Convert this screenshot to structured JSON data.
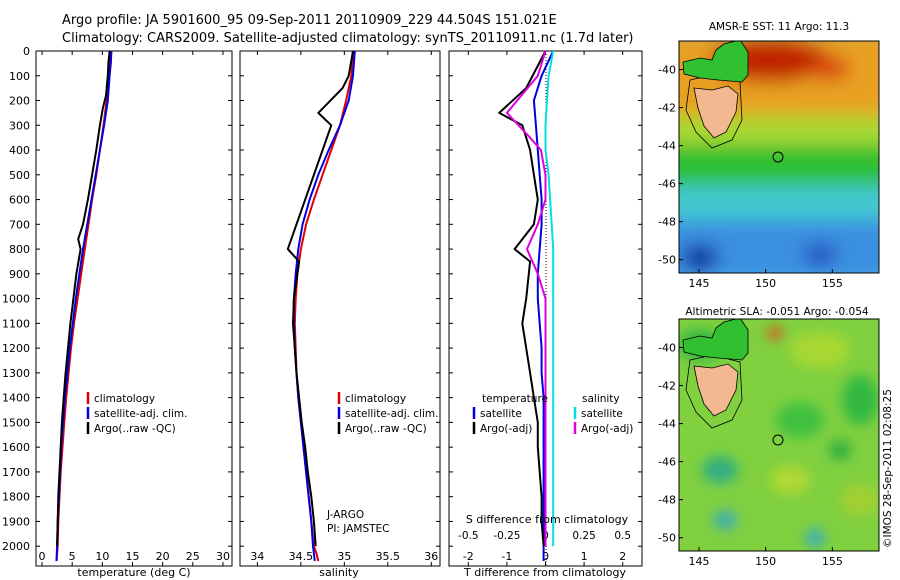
{
  "title": {
    "line1": "Argo profile: JA 5901600_95 09-Sep-2011 20110909_229 44.504S 151.021E",
    "line2": "Climatology: CARS2009. Satellite-adjusted climatology: synTS_20110911.nc (1.7d later)"
  },
  "credit": "©IMOS 28-Sep-2011 02:08:25",
  "colors": {
    "climatology": "#e00000",
    "satellite": "#0000e0",
    "argo": "#000000",
    "sat_salinity": "#00e0e0",
    "argo_salinity_adj": "#e000e0"
  },
  "chart_data": [
    {
      "type": "line",
      "xlabel": "temperature (deg C)",
      "ylim": [
        2080,
        0
      ],
      "xlim": [
        -1,
        31.5
      ],
      "xticks": [
        0,
        5,
        10,
        15,
        20,
        25,
        30
      ],
      "yticks": [
        0,
        100,
        200,
        300,
        400,
        500,
        600,
        700,
        800,
        900,
        1000,
        1100,
        1200,
        1300,
        1400,
        1500,
        1600,
        1700,
        1800,
        1900,
        2000
      ],
      "legend": [
        "climatology",
        "satellite-adj. clim.",
        "Argo(..raw -QC)"
      ],
      "legend_position": "lower-center",
      "series": [
        {
          "name": "climatology",
          "color": "#e00000",
          "x": [
            11.3,
            11.2,
            11.0,
            10.7,
            10.2,
            9.6,
            9.0,
            8.3,
            7.7,
            7.1,
            6.5,
            5.9,
            5.3,
            4.8,
            4.4,
            4.0,
            3.7,
            3.4,
            3.1,
            2.9,
            2.7,
            2.6,
            2.5,
            2.4
          ],
          "depth": [
            0,
            50,
            100,
            200,
            300,
            400,
            500,
            600,
            700,
            800,
            900,
            1000,
            1100,
            1200,
            1300,
            1400,
            1500,
            1600,
            1700,
            1800,
            1900,
            2000,
            2030,
            2060
          ]
        },
        {
          "name": "satellite-adj. clim.",
          "color": "#0000e0",
          "x": [
            11.5,
            11.4,
            11.2,
            10.9,
            10.3,
            9.6,
            8.9,
            8.2,
            7.5,
            6.8,
            6.2,
            5.6,
            5.1,
            4.6,
            4.2,
            3.8,
            3.5,
            3.2,
            3.0,
            2.8,
            2.6,
            2.5,
            2.4
          ],
          "depth": [
            0,
            50,
            100,
            200,
            300,
            400,
            500,
            600,
            700,
            800,
            900,
            1000,
            1100,
            1200,
            1300,
            1400,
            1500,
            1600,
            1700,
            1800,
            1900,
            2000,
            2060
          ]
        },
        {
          "name": "Argo(..raw -QC)",
          "color": "#000000",
          "x": [
            11.2,
            11.0,
            10.9,
            10.6,
            10.1,
            9.6,
            9.0,
            8.3,
            7.6,
            6.8,
            6.0,
            6.4,
            5.7,
            5.2,
            4.7,
            4.3,
            3.9,
            3.6,
            3.3,
            3.1,
            2.9,
            2.7,
            2.6,
            2.5
          ],
          "depth": [
            0,
            50,
            100,
            180,
            230,
            300,
            400,
            500,
            600,
            700,
            760,
            800,
            900,
            1000,
            1100,
            1200,
            1300,
            1400,
            1500,
            1600,
            1700,
            1800,
            1900,
            2000
          ]
        }
      ]
    },
    {
      "type": "line",
      "xlabel": "salinity",
      "ylim": [
        2080,
        0
      ],
      "xlim": [
        33.8,
        36.1
      ],
      "xticks": [
        34,
        34.5,
        35,
        35.5,
        36
      ],
      "legend": [
        "climatology",
        "satellite-adj. clim.",
        "Argo(..raw -QC)"
      ],
      "legend_position": "lower-center",
      "annotations": [
        "J-ARGO",
        "PI: JAMSTEC"
      ],
      "series": [
        {
          "name": "climatology",
          "color": "#e00000",
          "x": [
            35.1,
            35.08,
            35.02,
            34.95,
            34.85,
            34.75,
            34.65,
            34.56,
            34.5,
            34.46,
            34.44,
            34.43,
            34.44,
            34.45,
            34.47,
            34.5,
            34.53,
            34.56,
            34.59,
            34.62,
            34.65,
            34.68,
            34.7
          ],
          "depth": [
            0,
            100,
            200,
            300,
            400,
            500,
            600,
            700,
            800,
            900,
            1000,
            1100,
            1200,
            1300,
            1400,
            1500,
            1600,
            1700,
            1800,
            1900,
            2000,
            2030,
            2060
          ]
        },
        {
          "name": "satellite-adj. clim.",
          "color": "#0000e0",
          "x": [
            35.12,
            35.1,
            35.05,
            34.95,
            34.82,
            34.7,
            34.6,
            34.52,
            34.47,
            34.44,
            34.42,
            34.42,
            34.43,
            34.45,
            34.47,
            34.5,
            34.53,
            34.56,
            34.59,
            34.62,
            34.64,
            34.66
          ],
          "depth": [
            0,
            100,
            200,
            300,
            400,
            500,
            600,
            700,
            800,
            900,
            1000,
            1100,
            1200,
            1300,
            1400,
            1500,
            1600,
            1700,
            1800,
            1900,
            2000,
            2060
          ]
        },
        {
          "name": "Argo(..raw -QC)",
          "color": "#000000",
          "x": [
            35.1,
            35.05,
            34.98,
            34.7,
            34.85,
            34.75,
            34.65,
            34.55,
            34.45,
            34.35,
            34.48,
            34.42,
            34.41,
            34.43,
            34.45,
            34.48,
            34.51,
            34.55,
            34.58,
            34.62,
            34.65,
            34.67
          ],
          "depth": [
            0,
            100,
            150,
            250,
            300,
            400,
            500,
            600,
            700,
            800,
            850,
            1000,
            1100,
            1200,
            1300,
            1400,
            1500,
            1600,
            1700,
            1800,
            1900,
            2000
          ]
        }
      ]
    },
    {
      "type": "line",
      "xlabel": "T difference from climatology",
      "xlabel2": "S difference from climatology",
      "ylim": [
        2080,
        0
      ],
      "xlim": [
        -2.5,
        2.5
      ],
      "xticks": [
        -2,
        -1,
        0,
        1,
        2
      ],
      "xticks2": [
        -0.5,
        -0.25,
        0,
        0.25,
        0.5
      ],
      "legend_temperature": {
        "header": "temperature",
        "items": [
          "satellite",
          "Argo(-adj)"
        ]
      },
      "legend_salinity": {
        "header": "salinity",
        "items": [
          "satellite",
          "Argo(-adj)"
        ]
      },
      "series": [
        {
          "name": "satellite",
          "color": "#0000e0",
          "x": [
            0.2,
            -0.1,
            -0.3,
            -0.25,
            -0.2,
            -0.15,
            -0.1,
            -0.1,
            -0.15,
            -0.2,
            -0.2,
            -0.15,
            -0.1,
            -0.1,
            -0.05,
            -0.05,
            -0.05,
            -0.05,
            -0.05,
            -0.05,
            -0.05,
            -0.05
          ],
          "depth": [
            0,
            100,
            200,
            300,
            400,
            500,
            600,
            700,
            800,
            900,
            1000,
            1100,
            1200,
            1300,
            1400,
            1500,
            1600,
            1700,
            1800,
            1900,
            2000,
            2060
          ]
        },
        {
          "name": "Argo(-adj)",
          "color": "#000000",
          "x": [
            0.0,
            -0.5,
            -1.2,
            -0.6,
            -0.4,
            -0.3,
            -0.2,
            -0.3,
            -0.8,
            -0.4,
            -0.5,
            -0.6,
            -0.5,
            -0.4,
            -0.3,
            -0.2,
            -0.2,
            -0.15,
            -0.1,
            -0.1,
            -0.05
          ],
          "depth": [
            0,
            150,
            250,
            300,
            400,
            500,
            600,
            700,
            800,
            850,
            1000,
            1100,
            1200,
            1300,
            1400,
            1500,
            1600,
            1700,
            1800,
            1900,
            2000
          ]
        },
        {
          "name": "satellite salinity",
          "color": "#00e0e0",
          "x": [
            0.05,
            0.02,
            0.01,
            0.0,
            0.0,
            0.02,
            0.03,
            0.04,
            0.05,
            0.05,
            0.05,
            0.05,
            0.05,
            0.05,
            0.05,
            0.05,
            0.05,
            0.05,
            0.05,
            0.05
          ],
          "depth": [
            0,
            100,
            200,
            300,
            400,
            500,
            600,
            700,
            800,
            900,
            1000,
            1100,
            1200,
            1300,
            1400,
            1500,
            1600,
            1700,
            1800,
            2000
          ]
        },
        {
          "name": "salinity Argo(-adj)",
          "color": "#e000e0",
          "x": [
            0.0,
            -0.05,
            -0.25,
            -0.1,
            -0.03,
            0.0,
            0.0,
            -0.05,
            -0.12,
            -0.05,
            0.0,
            0.0,
            0.0,
            0.0,
            0.0,
            0.0,
            0.0,
            0.0,
            0.0,
            0.0
          ],
          "depth": [
            0,
            100,
            250,
            350,
            400,
            500,
            600,
            700,
            800,
            900,
            1000,
            1100,
            1200,
            1300,
            1400,
            1500,
            1600,
            1700,
            1800,
            2000
          ]
        }
      ]
    },
    {
      "type": "heatmap",
      "title": "AMSR-E SST: 11 Argo: 11.3",
      "xticks": [
        145,
        150,
        155
      ],
      "yticks": [
        -40,
        -42,
        -44,
        -46,
        -48,
        -50
      ],
      "xlim": [
        143.5,
        158.5
      ],
      "ylim": [
        -50.7,
        -38.5
      ],
      "profile_marker": {
        "lon": 151.0,
        "lat": -44.5
      }
    },
    {
      "type": "heatmap",
      "title": "Altimetric SLA: -0.051 Argo: -0.054",
      "xticks": [
        145,
        150,
        155
      ],
      "yticks": [
        -40,
        -42,
        -44,
        -46,
        -48,
        -50
      ],
      "xlim": [
        143.5,
        158.5
      ],
      "ylim": [
        -50.7,
        -38.5
      ],
      "profile_marker": {
        "lon": 151.0,
        "lat": -44.5
      }
    }
  ]
}
